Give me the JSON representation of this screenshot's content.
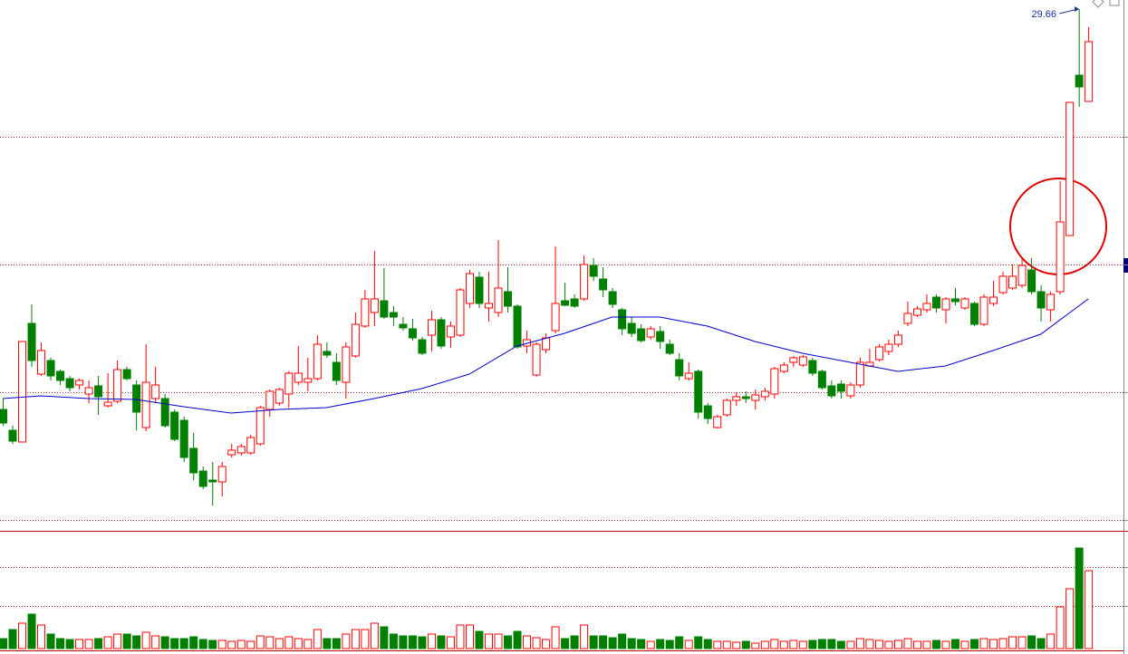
{
  "chart_data": [
    {
      "type": "candlestick",
      "up_color": "#ff0000",
      "down_color": "#008000",
      "ylim": [
        18.14,
        29.86
      ],
      "ygrid": [
        26.84,
        24.02,
        21.2,
        18.38
      ],
      "annotation": {
        "value": 29.66,
        "label": "29.66",
        "color": "#1f2f9f"
      },
      "open": [
        20.82,
        20.36,
        20.1,
        22.72,
        21.6,
        21.9,
        21.66,
        21.5,
        21.36,
        21.16,
        21.34,
        20.9,
        21.0,
        21.7,
        21.36,
        20.42,
        21.06,
        21.06,
        20.76,
        20.58,
        19.96,
        19.46,
        19.26,
        19.22,
        19.82,
        19.86,
        19.86,
        20.06,
        20.82,
        20.96,
        21.16,
        21.42,
        21.42,
        21.5,
        22.1,
        21.86,
        21.42,
        22.0,
        22.66,
        22.96,
        23.22,
        22.96,
        22.7,
        22.6,
        22.36,
        22.46,
        22.8,
        22.42,
        22.46,
        23.16,
        23.74,
        23.06,
        22.96,
        23.42,
        23.1,
        22.22,
        21.58,
        22.14,
        22.56,
        23.22,
        23.26,
        23.26,
        24.0,
        23.7,
        23.42,
        23.02,
        22.72,
        22.6,
        22.42,
        22.54,
        22.26,
        21.92,
        21.5,
        21.66,
        20.9,
        20.42,
        20.7,
        21.02,
        21.1,
        21.02,
        21.1,
        21.16,
        21.66,
        21.86,
        21.8,
        21.9,
        21.66,
        21.34,
        21.38,
        21.12,
        21.36,
        21.78,
        21.92,
        22.1,
        22.26,
        22.72,
        22.9,
        23.02,
        23.3,
        23.02,
        23.26,
        23.06,
        23.16,
        22.7,
        23.16,
        23.4,
        23.5,
        23.56,
        23.9,
        23.42,
        23.02,
        23.42,
        24.66,
        28.2,
        27.62
      ],
      "high": [
        21.06,
        20.46,
        22.32,
        23.14,
        22.3,
        21.96,
        21.7,
        21.56,
        21.5,
        21.46,
        21.56,
        21.62,
        21.9,
        21.76,
        21.46,
        22.26,
        21.76,
        21.16,
        20.82,
        20.66,
        20.3,
        19.56,
        19.66,
        19.66,
        20.06,
        20.06,
        20.26,
        20.9,
        21.26,
        21.3,
        21.66,
        22.22,
        21.96,
        22.46,
        22.3,
        22.06,
        22.3,
        22.96,
        23.46,
        24.32,
        23.94,
        23.1,
        22.86,
        22.82,
        22.42,
        23.0,
        22.86,
        22.76,
        23.5,
        23.9,
        23.86,
        23.86,
        24.56,
        23.96,
        23.14,
        22.56,
        22.3,
        22.5,
        24.42,
        23.62,
        23.36,
        24.22,
        24.16,
        23.96,
        23.5,
        23.06,
        22.86,
        22.7,
        22.66,
        22.66,
        22.36,
        22.06,
        21.86,
        21.7,
        20.96,
        20.7,
        21.06,
        21.2,
        21.22,
        21.26,
        21.3,
        21.76,
        21.86,
        22.0,
        22.02,
        21.96,
        21.7,
        21.46,
        21.46,
        21.42,
        21.96,
        22.16,
        22.26,
        22.36,
        22.56,
        23.2,
        23.1,
        23.36,
        23.36,
        23.3,
        23.5,
        23.3,
        23.2,
        23.36,
        23.66,
        23.86,
        24.02,
        24.16,
        24.16,
        23.56,
        23.42,
        25.86,
        27.6,
        29.66,
        29.26
      ],
      "low": [
        20.46,
        20.06,
        20.1,
        21.76,
        21.56,
        21.46,
        21.36,
        21.22,
        21.26,
        20.96,
        20.7,
        20.86,
        20.96,
        21.46,
        20.36,
        20.34,
        20.96,
        20.42,
        20.12,
        19.66,
        19.26,
        19.06,
        18.7,
        18.9,
        19.76,
        19.8,
        19.82,
        20.02,
        20.66,
        20.9,
        20.86,
        21.36,
        21.22,
        21.46,
        21.96,
        21.36,
        21.06,
        21.96,
        22.62,
        22.66,
        22.82,
        22.66,
        22.56,
        22.34,
        22.02,
        22.1,
        22.16,
        22.18,
        22.42,
        23.06,
        23.06,
        22.76,
        22.86,
        22.96,
        22.16,
        22.06,
        21.54,
        22.06,
        22.5,
        23.1,
        23.06,
        23.22,
        23.66,
        23.3,
        23.06,
        22.46,
        22.42,
        22.3,
        22.36,
        22.16,
        22.02,
        21.46,
        21.46,
        20.62,
        20.5,
        20.4,
        20.66,
        20.9,
        20.96,
        20.82,
        21.02,
        21.06,
        21.62,
        21.76,
        21.76,
        21.56,
        21.26,
        21.06,
        21.06,
        21.06,
        21.3,
        21.76,
        21.88,
        22.02,
        22.2,
        22.66,
        22.86,
        22.96,
        22.96,
        22.72,
        23.12,
        23.02,
        22.66,
        22.66,
        23.1,
        23.36,
        23.46,
        23.5,
        23.36,
        22.76,
        22.76,
        23.36,
        24.66,
        27.5,
        27.62
      ],
      "close": [
        20.52,
        20.12,
        22.32,
        21.9,
        22.12,
        21.56,
        21.46,
        21.3,
        21.46,
        21.3,
        21.1,
        20.98,
        21.7,
        21.5,
        20.76,
        21.42,
        21.36,
        20.46,
        20.16,
        19.76,
        19.42,
        19.12,
        19.22,
        19.56,
        19.92,
        20.0,
        20.2,
        20.86,
        21.22,
        21.26,
        21.62,
        21.62,
        21.5,
        22.26,
        22.02,
        21.46,
        22.2,
        22.7,
        23.26,
        23.26,
        22.86,
        22.86,
        22.62,
        22.4,
        22.06,
        22.8,
        22.22,
        22.66,
        23.46,
        23.82,
        23.16,
        23.16,
        23.5,
        23.1,
        22.2,
        22.36,
        22.26,
        22.4,
        23.16,
        23.12,
        23.1,
        24.02,
        23.76,
        23.46,
        23.14,
        22.6,
        22.5,
        22.34,
        22.6,
        22.32,
        22.06,
        21.56,
        21.62,
        20.76,
        20.62,
        20.66,
        21.02,
        21.1,
        21.06,
        21.14,
        21.22,
        21.72,
        21.8,
        21.96,
        21.98,
        21.62,
        21.3,
        21.12,
        21.22,
        21.36,
        21.86,
        21.86,
        22.2,
        22.26,
        22.46,
        22.94,
        23.04,
        23.16,
        23.06,
        23.26,
        23.2,
        23.26,
        22.7,
        23.3,
        23.3,
        23.76,
        23.76,
        24.0,
        23.42,
        23.06,
        23.36,
        24.96,
        27.6,
        27.94,
        28.94
      ],
      "ma": {
        "color": "#0000cc",
        "x": [
          0,
          4,
          9,
          14,
          19,
          24,
          29,
          34,
          39,
          44,
          49,
          54,
          59,
          64,
          69,
          74,
          79,
          84,
          89,
          94,
          99,
          104,
          109,
          114
        ],
        "values": [
          21.06,
          21.12,
          21.06,
          21.04,
          20.88,
          20.74,
          20.82,
          20.86,
          21.06,
          21.28,
          21.6,
          22.22,
          22.5,
          22.86,
          22.86,
          22.66,
          22.32,
          22.06,
          21.86,
          21.66,
          21.78,
          22.12,
          22.48,
          23.26
        ]
      }
    },
    {
      "type": "bar",
      "up_color": "#ff0000",
      "down_color": "#008000",
      "ylim": [
        0,
        128
      ],
      "ygrid": [
        47,
        90
      ],
      "values": [
        11,
        21,
        28,
        38,
        26,
        16,
        11,
        10,
        10,
        10,
        11,
        13,
        16,
        16,
        14,
        18,
        14,
        13,
        11,
        11,
        13,
        10,
        9,
        9,
        8,
        9,
        8,
        14,
        13,
        11,
        13,
        11,
        10,
        21,
        11,
        11,
        16,
        21,
        21,
        28,
        24,
        16,
        14,
        14,
        13,
        16,
        14,
        13,
        26,
        26,
        19,
        16,
        16,
        14,
        19,
        14,
        12,
        10,
        24,
        11,
        14,
        26,
        14,
        14,
        12,
        16,
        11,
        10,
        8,
        10,
        9,
        13,
        9,
        13,
        10,
        8,
        8,
        7,
        8,
        6,
        8,
        10,
        8,
        9,
        8,
        9,
        10,
        10,
        8,
        8,
        11,
        10,
        9,
        8,
        9,
        11,
        8,
        8,
        9,
        8,
        10,
        8,
        10,
        11,
        10,
        11,
        13,
        13,
        14,
        11,
        16,
        46,
        66,
        111,
        86
      ]
    }
  ]
}
